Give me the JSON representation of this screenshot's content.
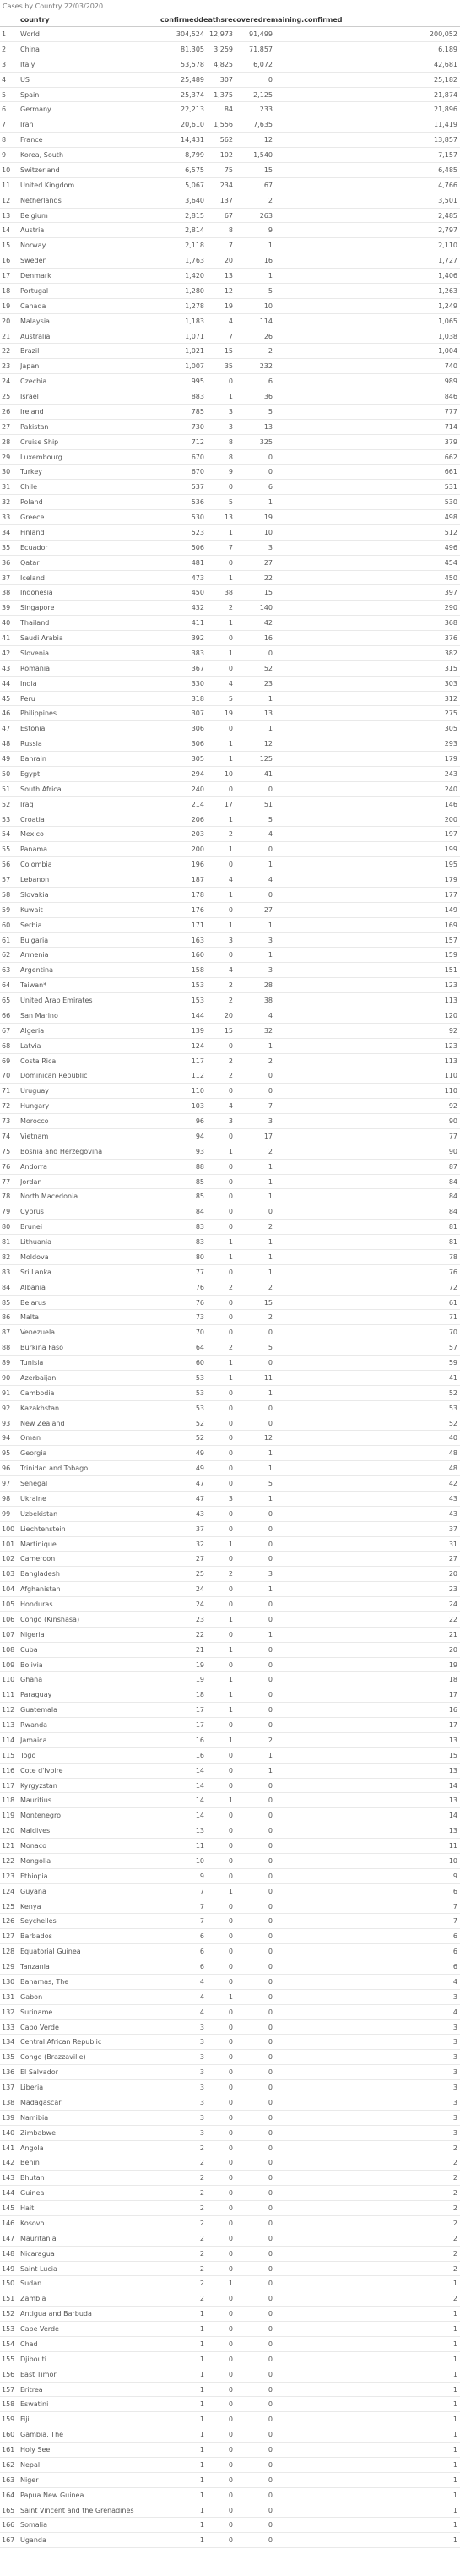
{
  "caption": "Cases by Country 22/03/2020",
  "columns": {
    "country": "country",
    "group_header": "confirmeddeathsrecoveredremaining.confirmed"
  },
  "rows": [
    [
      "1",
      "World",
      "304,524",
      "12,973",
      "91,499",
      "200,052"
    ],
    [
      "2",
      "China",
      "81,305",
      "3,259",
      "71,857",
      "6,189"
    ],
    [
      "3",
      "Italy",
      "53,578",
      "4,825",
      "6,072",
      "42,681"
    ],
    [
      "4",
      "US",
      "25,489",
      "307",
      "0",
      "25,182"
    ],
    [
      "5",
      "Spain",
      "25,374",
      "1,375",
      "2,125",
      "21,874"
    ],
    [
      "6",
      "Germany",
      "22,213",
      "84",
      "233",
      "21,896"
    ],
    [
      "7",
      "Iran",
      "20,610",
      "1,556",
      "7,635",
      "11,419"
    ],
    [
      "8",
      "France",
      "14,431",
      "562",
      "12",
      "13,857"
    ],
    [
      "9",
      "Korea, South",
      "8,799",
      "102",
      "1,540",
      "7,157"
    ],
    [
      "10",
      "Switzerland",
      "6,575",
      "75",
      "15",
      "6,485"
    ],
    [
      "11",
      "United Kingdom",
      "5,067",
      "234",
      "67",
      "4,766"
    ],
    [
      "12",
      "Netherlands",
      "3,640",
      "137",
      "2",
      "3,501"
    ],
    [
      "13",
      "Belgium",
      "2,815",
      "67",
      "263",
      "2,485"
    ],
    [
      "14",
      "Austria",
      "2,814",
      "8",
      "9",
      "2,797"
    ],
    [
      "15",
      "Norway",
      "2,118",
      "7",
      "1",
      "2,110"
    ],
    [
      "16",
      "Sweden",
      "1,763",
      "20",
      "16",
      "1,727"
    ],
    [
      "17",
      "Denmark",
      "1,420",
      "13",
      "1",
      "1,406"
    ],
    [
      "18",
      "Portugal",
      "1,280",
      "12",
      "5",
      "1,263"
    ],
    [
      "19",
      "Canada",
      "1,278",
      "19",
      "10",
      "1,249"
    ],
    [
      "20",
      "Malaysia",
      "1,183",
      "4",
      "114",
      "1,065"
    ],
    [
      "21",
      "Australia",
      "1,071",
      "7",
      "26",
      "1,038"
    ],
    [
      "22",
      "Brazil",
      "1,021",
      "15",
      "2",
      "1,004"
    ],
    [
      "23",
      "Japan",
      "1,007",
      "35",
      "232",
      "740"
    ],
    [
      "24",
      "Czechia",
      "995",
      "0",
      "6",
      "989"
    ],
    [
      "25",
      "Israel",
      "883",
      "1",
      "36",
      "846"
    ],
    [
      "26",
      "Ireland",
      "785",
      "3",
      "5",
      "777"
    ],
    [
      "27",
      "Pakistan",
      "730",
      "3",
      "13",
      "714"
    ],
    [
      "28",
      "Cruise Ship",
      "712",
      "8",
      "325",
      "379"
    ],
    [
      "29",
      "Luxembourg",
      "670",
      "8",
      "0",
      "662"
    ],
    [
      "30",
      "Turkey",
      "670",
      "9",
      "0",
      "661"
    ],
    [
      "31",
      "Chile",
      "537",
      "0",
      "6",
      "531"
    ],
    [
      "32",
      "Poland",
      "536",
      "5",
      "1",
      "530"
    ],
    [
      "33",
      "Greece",
      "530",
      "13",
      "19",
      "498"
    ],
    [
      "34",
      "Finland",
      "523",
      "1",
      "10",
      "512"
    ],
    [
      "35",
      "Ecuador",
      "506",
      "7",
      "3",
      "496"
    ],
    [
      "36",
      "Qatar",
      "481",
      "0",
      "27",
      "454"
    ],
    [
      "37",
      "Iceland",
      "473",
      "1",
      "22",
      "450"
    ],
    [
      "38",
      "Indonesia",
      "450",
      "38",
      "15",
      "397"
    ],
    [
      "39",
      "Singapore",
      "432",
      "2",
      "140",
      "290"
    ],
    [
      "40",
      "Thailand",
      "411",
      "1",
      "42",
      "368"
    ],
    [
      "41",
      "Saudi Arabia",
      "392",
      "0",
      "16",
      "376"
    ],
    [
      "42",
      "Slovenia",
      "383",
      "1",
      "0",
      "382"
    ],
    [
      "43",
      "Romania",
      "367",
      "0",
      "52",
      "315"
    ],
    [
      "44",
      "India",
      "330",
      "4",
      "23",
      "303"
    ],
    [
      "45",
      "Peru",
      "318",
      "5",
      "1",
      "312"
    ],
    [
      "46",
      "Philippines",
      "307",
      "19",
      "13",
      "275"
    ],
    [
      "47",
      "Estonia",
      "306",
      "0",
      "1",
      "305"
    ],
    [
      "48",
      "Russia",
      "306",
      "1",
      "12",
      "293"
    ],
    [
      "49",
      "Bahrain",
      "305",
      "1",
      "125",
      "179"
    ],
    [
      "50",
      "Egypt",
      "294",
      "10",
      "41",
      "243"
    ],
    [
      "51",
      "South Africa",
      "240",
      "0",
      "0",
      "240"
    ],
    [
      "52",
      "Iraq",
      "214",
      "17",
      "51",
      "146"
    ],
    [
      "53",
      "Croatia",
      "206",
      "1",
      "5",
      "200"
    ],
    [
      "54",
      "Mexico",
      "203",
      "2",
      "4",
      "197"
    ],
    [
      "55",
      "Panama",
      "200",
      "1",
      "0",
      "199"
    ],
    [
      "56",
      "Colombia",
      "196",
      "0",
      "1",
      "195"
    ],
    [
      "57",
      "Lebanon",
      "187",
      "4",
      "4",
      "179"
    ],
    [
      "58",
      "Slovakia",
      "178",
      "1",
      "0",
      "177"
    ],
    [
      "59",
      "Kuwait",
      "176",
      "0",
      "27",
      "149"
    ],
    [
      "60",
      "Serbia",
      "171",
      "1",
      "1",
      "169"
    ],
    [
      "61",
      "Bulgaria",
      "163",
      "3",
      "3",
      "157"
    ],
    [
      "62",
      "Armenia",
      "160",
      "0",
      "1",
      "159"
    ],
    [
      "63",
      "Argentina",
      "158",
      "4",
      "3",
      "151"
    ],
    [
      "64",
      "Taiwan*",
      "153",
      "2",
      "28",
      "123"
    ],
    [
      "65",
      "United Arab Emirates",
      "153",
      "2",
      "38",
      "113"
    ],
    [
      "66",
      "San Marino",
      "144",
      "20",
      "4",
      "120"
    ],
    [
      "67",
      "Algeria",
      "139",
      "15",
      "32",
      "92"
    ],
    [
      "68",
      "Latvia",
      "124",
      "0",
      "1",
      "123"
    ],
    [
      "69",
      "Costa Rica",
      "117",
      "2",
      "2",
      "113"
    ],
    [
      "70",
      "Dominican Republic",
      "112",
      "2",
      "0",
      "110"
    ],
    [
      "71",
      "Uruguay",
      "110",
      "0",
      "0",
      "110"
    ],
    [
      "72",
      "Hungary",
      "103",
      "4",
      "7",
      "92"
    ],
    [
      "73",
      "Morocco",
      "96",
      "3",
      "3",
      "90"
    ],
    [
      "74",
      "Vietnam",
      "94",
      "0",
      "17",
      "77"
    ],
    [
      "75",
      "Bosnia and Herzegovina",
      "93",
      "1",
      "2",
      "90"
    ],
    [
      "76",
      "Andorra",
      "88",
      "0",
      "1",
      "87"
    ],
    [
      "77",
      "Jordan",
      "85",
      "0",
      "1",
      "84"
    ],
    [
      "78",
      "North Macedonia",
      "85",
      "0",
      "1",
      "84"
    ],
    [
      "79",
      "Cyprus",
      "84",
      "0",
      "0",
      "84"
    ],
    [
      "80",
      "Brunei",
      "83",
      "0",
      "2",
      "81"
    ],
    [
      "81",
      "Lithuania",
      "83",
      "1",
      "1",
      "81"
    ],
    [
      "82",
      "Moldova",
      "80",
      "1",
      "1",
      "78"
    ],
    [
      "83",
      "Sri Lanka",
      "77",
      "0",
      "1",
      "76"
    ],
    [
      "84",
      "Albania",
      "76",
      "2",
      "2",
      "72"
    ],
    [
      "85",
      "Belarus",
      "76",
      "0",
      "15",
      "61"
    ],
    [
      "86",
      "Malta",
      "73",
      "0",
      "2",
      "71"
    ],
    [
      "87",
      "Venezuela",
      "70",
      "0",
      "0",
      "70"
    ],
    [
      "88",
      "Burkina Faso",
      "64",
      "2",
      "5",
      "57"
    ],
    [
      "89",
      "Tunisia",
      "60",
      "1",
      "0",
      "59"
    ],
    [
      "90",
      "Azerbaijan",
      "53",
      "1",
      "11",
      "41"
    ],
    [
      "91",
      "Cambodia",
      "53",
      "0",
      "1",
      "52"
    ],
    [
      "92",
      "Kazakhstan",
      "53",
      "0",
      "0",
      "53"
    ],
    [
      "93",
      "New Zealand",
      "52",
      "0",
      "0",
      "52"
    ],
    [
      "94",
      "Oman",
      "52",
      "0",
      "12",
      "40"
    ],
    [
      "95",
      "Georgia",
      "49",
      "0",
      "1",
      "48"
    ],
    [
      "96",
      "Trinidad and Tobago",
      "49",
      "0",
      "1",
      "48"
    ],
    [
      "97",
      "Senegal",
      "47",
      "0",
      "5",
      "42"
    ],
    [
      "98",
      "Ukraine",
      "47",
      "3",
      "1",
      "43"
    ],
    [
      "99",
      "Uzbekistan",
      "43",
      "0",
      "0",
      "43"
    ],
    [
      "100",
      "Liechtenstein",
      "37",
      "0",
      "0",
      "37"
    ],
    [
      "101",
      "Martinique",
      "32",
      "1",
      "0",
      "31"
    ],
    [
      "102",
      "Cameroon",
      "27",
      "0",
      "0",
      "27"
    ],
    [
      "103",
      "Bangladesh",
      "25",
      "2",
      "3",
      "20"
    ],
    [
      "104",
      "Afghanistan",
      "24",
      "0",
      "1",
      "23"
    ],
    [
      "105",
      "Honduras",
      "24",
      "0",
      "0",
      "24"
    ],
    [
      "106",
      "Congo (Kinshasa)",
      "23",
      "1",
      "0",
      "22"
    ],
    [
      "107",
      "Nigeria",
      "22",
      "0",
      "1",
      "21"
    ],
    [
      "108",
      "Cuba",
      "21",
      "1",
      "0",
      "20"
    ],
    [
      "109",
      "Bolivia",
      "19",
      "0",
      "0",
      "19"
    ],
    [
      "110",
      "Ghana",
      "19",
      "1",
      "0",
      "18"
    ],
    [
      "111",
      "Paraguay",
      "18",
      "1",
      "0",
      "17"
    ],
    [
      "112",
      "Guatemala",
      "17",
      "1",
      "0",
      "16"
    ],
    [
      "113",
      "Rwanda",
      "17",
      "0",
      "0",
      "17"
    ],
    [
      "114",
      "Jamaica",
      "16",
      "1",
      "2",
      "13"
    ],
    [
      "115",
      "Togo",
      "16",
      "0",
      "1",
      "15"
    ],
    [
      "116",
      "Cote d'Ivoire",
      "14",
      "0",
      "1",
      "13"
    ],
    [
      "117",
      "Kyrgyzstan",
      "14",
      "0",
      "0",
      "14"
    ],
    [
      "118",
      "Mauritius",
      "14",
      "1",
      "0",
      "13"
    ],
    [
      "119",
      "Montenegro",
      "14",
      "0",
      "0",
      "14"
    ],
    [
      "120",
      "Maldives",
      "13",
      "0",
      "0",
      "13"
    ],
    [
      "121",
      "Monaco",
      "11",
      "0",
      "0",
      "11"
    ],
    [
      "122",
      "Mongolia",
      "10",
      "0",
      "0",
      "10"
    ],
    [
      "123",
      "Ethiopia",
      "9",
      "0",
      "0",
      "9"
    ],
    [
      "124",
      "Guyana",
      "7",
      "1",
      "0",
      "6"
    ],
    [
      "125",
      "Kenya",
      "7",
      "0",
      "0",
      "7"
    ],
    [
      "126",
      "Seychelles",
      "7",
      "0",
      "0",
      "7"
    ],
    [
      "127",
      "Barbados",
      "6",
      "0",
      "0",
      "6"
    ],
    [
      "128",
      "Equatorial Guinea",
      "6",
      "0",
      "0",
      "6"
    ],
    [
      "129",
      "Tanzania",
      "6",
      "0",
      "0",
      "6"
    ],
    [
      "130",
      "Bahamas, The",
      "4",
      "0",
      "0",
      "4"
    ],
    [
      "131",
      "Gabon",
      "4",
      "1",
      "0",
      "3"
    ],
    [
      "132",
      "Suriname",
      "4",
      "0",
      "0",
      "4"
    ],
    [
      "133",
      "Cabo Verde",
      "3",
      "0",
      "0",
      "3"
    ],
    [
      "134",
      "Central African Republic",
      "3",
      "0",
      "0",
      "3"
    ],
    [
      "135",
      "Congo (Brazzaville)",
      "3",
      "0",
      "0",
      "3"
    ],
    [
      "136",
      "El Salvador",
      "3",
      "0",
      "0",
      "3"
    ],
    [
      "137",
      "Liberia",
      "3",
      "0",
      "0",
      "3"
    ],
    [
      "138",
      "Madagascar",
      "3",
      "0",
      "0",
      "3"
    ],
    [
      "139",
      "Namibia",
      "3",
      "0",
      "0",
      "3"
    ],
    [
      "140",
      "Zimbabwe",
      "3",
      "0",
      "0",
      "3"
    ],
    [
      "141",
      "Angola",
      "2",
      "0",
      "0",
      "2"
    ],
    [
      "142",
      "Benin",
      "2",
      "0",
      "0",
      "2"
    ],
    [
      "143",
      "Bhutan",
      "2",
      "0",
      "0",
      "2"
    ],
    [
      "144",
      "Guinea",
      "2",
      "0",
      "0",
      "2"
    ],
    [
      "145",
      "Haiti",
      "2",
      "0",
      "0",
      "2"
    ],
    [
      "146",
      "Kosovo",
      "2",
      "0",
      "0",
      "2"
    ],
    [
      "147",
      "Mauritania",
      "2",
      "0",
      "0",
      "2"
    ],
    [
      "148",
      "Nicaragua",
      "2",
      "0",
      "0",
      "2"
    ],
    [
      "149",
      "Saint Lucia",
      "2",
      "0",
      "0",
      "2"
    ],
    [
      "150",
      "Sudan",
      "2",
      "1",
      "0",
      "1"
    ],
    [
      "151",
      "Zambia",
      "2",
      "0",
      "0",
      "2"
    ],
    [
      "152",
      "Antigua and Barbuda",
      "1",
      "0",
      "0",
      "1"
    ],
    [
      "153",
      "Cape Verde",
      "1",
      "0",
      "0",
      "1"
    ],
    [
      "154",
      "Chad",
      "1",
      "0",
      "0",
      "1"
    ],
    [
      "155",
      "Djibouti",
      "1",
      "0",
      "0",
      "1"
    ],
    [
      "156",
      "East Timor",
      "1",
      "0",
      "0",
      "1"
    ],
    [
      "157",
      "Eritrea",
      "1",
      "0",
      "0",
      "1"
    ],
    [
      "158",
      "Eswatini",
      "1",
      "0",
      "0",
      "1"
    ],
    [
      "159",
      "Fiji",
      "1",
      "0",
      "0",
      "1"
    ],
    [
      "160",
      "Gambia, The",
      "1",
      "0",
      "0",
      "1"
    ],
    [
      "161",
      "Holy See",
      "1",
      "0",
      "0",
      "1"
    ],
    [
      "162",
      "Nepal",
      "1",
      "0",
      "0",
      "1"
    ],
    [
      "163",
      "Niger",
      "1",
      "0",
      "0",
      "1"
    ],
    [
      "164",
      "Papua New Guinea",
      "1",
      "0",
      "0",
      "1"
    ],
    [
      "165",
      "Saint Vincent and the Grenadines",
      "1",
      "0",
      "0",
      "1"
    ],
    [
      "166",
      "Somalia",
      "1",
      "0",
      "0",
      "1"
    ],
    [
      "167",
      "Uganda",
      "1",
      "0",
      "0",
      "1"
    ]
  ]
}
